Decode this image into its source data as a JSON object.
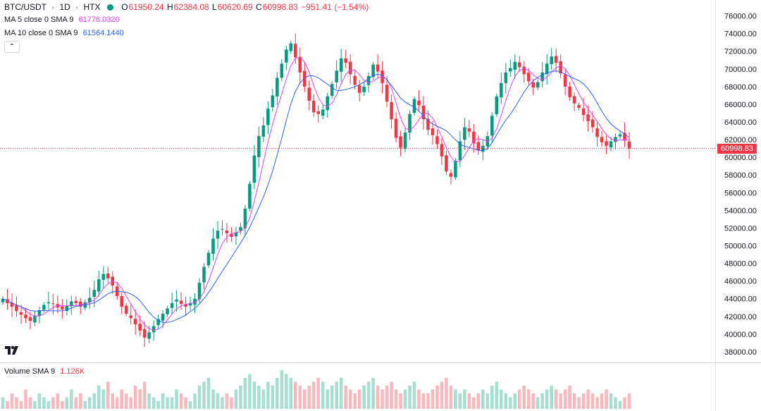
{
  "header": {
    "symbol": "BTC/USDT",
    "interval": "1D",
    "exchange": "HTX",
    "sep1": "·",
    "sep2": "·",
    "open_label": "O",
    "open": "61950.24",
    "high_label": "H",
    "high": "62384.08",
    "low_label": "L",
    "low": "60620.69",
    "close_label": "C",
    "close": "60998.83",
    "change": "−951.41 (−1.54%)"
  },
  "indicators": {
    "ma5": {
      "label": "MA 5 close 0 SMA 9",
      "value": "61776.0320",
      "color": "#e040fb"
    },
    "ma10": {
      "label": "MA 10 close 0 SMA 9",
      "value": "61564.1440",
      "color": "#2962ff"
    },
    "collapse_icon": "chevron-up-icon",
    "collapse_glyph": "⌃"
  },
  "volume": {
    "label": "Volume SMA 9",
    "value": "1.126K"
  },
  "last_price": "60998.83",
  "colors": {
    "up": "#089981",
    "down": "#f23645",
    "up_volume": "#a8ddd1",
    "down_volume": "#f7b8be"
  },
  "chart_data": {
    "type": "candlestick",
    "y_ticks": [
      38000,
      40000,
      42000,
      44000,
      46000,
      48000,
      50000,
      52000,
      54000,
      56000,
      58000,
      60000,
      62000,
      64000,
      66000,
      68000,
      70000,
      72000,
      74000,
      76000
    ],
    "y_tick_labels": [
      "38000.00",
      "40000.00",
      "42000.00",
      "44000.00",
      "46000.00",
      "48000.00",
      "50000.00",
      "52000.00",
      "54000.00",
      "56000.00",
      "58000.00",
      "60000.00",
      "62000.00",
      "64000.00",
      "66000.00",
      "68000.00",
      "70000.00",
      "72000.00",
      "74000.00",
      "76000.00"
    ],
    "ylim": [
      36800,
      77800
    ],
    "series": [
      {
        "name": "MA 5 close 0 SMA 9"
      },
      {
        "name": "MA 10 close 0 SMA 9"
      }
    ],
    "close": [
      44000,
      43500,
      43100,
      42600,
      42200,
      41800,
      41500,
      42100,
      42700,
      43300,
      43600,
      43400,
      43000,
      42800,
      43200,
      43700,
      43500,
      43100,
      43600,
      44100,
      45000,
      46200,
      46800,
      46300,
      45500,
      44300,
      43100,
      42300,
      41800,
      41100,
      40400,
      39600,
      40200,
      40900,
      41700,
      42300,
      42900,
      43500,
      43900,
      43400,
      43100,
      43500,
      44000,
      45800,
      47600,
      49200,
      50800,
      51700,
      51900,
      51400,
      51000,
      51500,
      52100,
      54200,
      57000,
      60200,
      62400,
      63600,
      65500,
      67000,
      69000,
      70600,
      72200,
      72900,
      71300,
      69600,
      68000,
      66400,
      65100,
      64900,
      65400,
      66900,
      68300,
      69800,
      71200,
      70700,
      69400,
      68200,
      67300,
      68000,
      69200,
      70500,
      69700,
      68400,
      66300,
      64300,
      62200,
      61100,
      62800,
      64900,
      66600,
      65900,
      64300,
      63100,
      62500,
      61500,
      60100,
      58400,
      57800,
      59600,
      61800,
      63400,
      62900,
      61600,
      60800,
      61300,
      62400,
      64700,
      66900,
      68400,
      69600,
      70100,
      70800,
      70200,
      69400,
      68600,
      67900,
      68500,
      69600,
      70600,
      71400,
      70700,
      69500,
      68000,
      66800,
      66100,
      65600,
      64800,
      64100,
      63400,
      62300,
      61700,
      61300,
      61800,
      62300,
      62600,
      61900,
      61000
    ],
    "volume": [
      3,
      2,
      4,
      3,
      2,
      5,
      3,
      2,
      4,
      3,
      2,
      3,
      4,
      2,
      3,
      5,
      3,
      4,
      2,
      3,
      4,
      6,
      5,
      7,
      4,
      3,
      5,
      4,
      3,
      6,
      5,
      7,
      4,
      3,
      2,
      4,
      3,
      3,
      5,
      4,
      3,
      2,
      4,
      6,
      7,
      8,
      5,
      4,
      3,
      4,
      3,
      5,
      6,
      8,
      9,
      7,
      6,
      5,
      7,
      6,
      8,
      10,
      9,
      8,
      7,
      6,
      5,
      6,
      7,
      8,
      7,
      5,
      6,
      7,
      8,
      6,
      5,
      4,
      5,
      6,
      7,
      8,
      6,
      5,
      6,
      7,
      5,
      4,
      5,
      6,
      7,
      5,
      4,
      4,
      5,
      6,
      7,
      8,
      6,
      5,
      4,
      5,
      4,
      3,
      4,
      5,
      4,
      6,
      7,
      5,
      4,
      3,
      4,
      5,
      6,
      5,
      4,
      3,
      4,
      5,
      6,
      5,
      4,
      5,
      6,
      4,
      3,
      4,
      5,
      4,
      3,
      4,
      5,
      4,
      3,
      2,
      3,
      4
    ]
  }
}
